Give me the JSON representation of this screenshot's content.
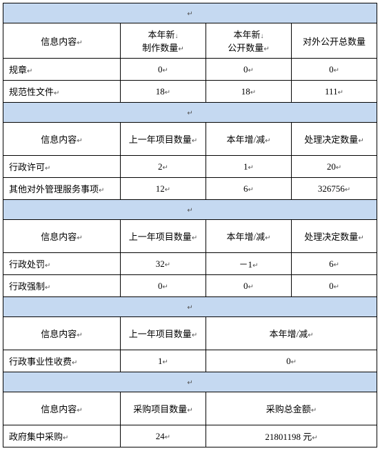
{
  "marks": {
    "enter": "↵",
    "down": "↓"
  },
  "section1": {
    "h1": "信息内容",
    "h2a": "本年新",
    "h2b": "制作数量",
    "h3a": "本年新",
    "h3b": "公开数量",
    "h4": "对外公开总数量",
    "r1": {
      "label": "规章",
      "v1": "0",
      "v2": "0",
      "v3": "0"
    },
    "r2": {
      "label": "规范性文件",
      "v1": "18",
      "v2": "18",
      "v3": "111"
    }
  },
  "section2": {
    "h1": "信息内容",
    "h2": "上一年项目数量",
    "h3": "本年增/减",
    "h4": "处理决定数量",
    "r1": {
      "label": "行政许可",
      "v1": "2",
      "v2": "1",
      "v3": "20"
    },
    "r2": {
      "label": "其他对外管理服务事项",
      "v1": "12",
      "v2": "6",
      "v3": "326756"
    }
  },
  "section3": {
    "h1": "信息内容",
    "h2": "上一年项目数量",
    "h3": "本年增/减",
    "h4": "处理决定数量",
    "r1": {
      "label": "行政处罚",
      "v1": "32",
      "v2": "－1",
      "v3": "6"
    },
    "r2": {
      "label": "行政强制",
      "v1": "0",
      "v2": "0",
      "v3": "0"
    }
  },
  "section4": {
    "h1": "信息内容",
    "h2": "上一年项目数量",
    "h3": "本年增/减",
    "r1": {
      "label": "行政事业性收费",
      "v1": "1",
      "v2": "0"
    }
  },
  "section5": {
    "h1": "信息内容",
    "h2": "采购项目数量",
    "h3": "采购总金额",
    "r1": {
      "label": "政府集中采购",
      "v1": "24",
      "v2": "21801198 元"
    }
  }
}
